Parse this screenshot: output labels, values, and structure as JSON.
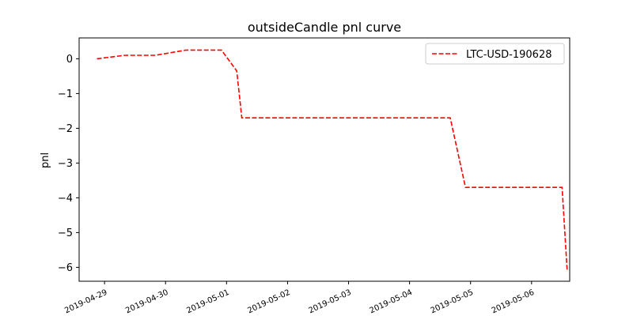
{
  "chart_data": {
    "type": "line",
    "title": "outsideCandle pnl curve",
    "xlabel": "",
    "ylabel": "pnl",
    "xlim": [
      "2019-04-28 14:00",
      "2019-05-06 15:00"
    ],
    "ylim": [
      -6.4,
      0.6
    ],
    "yticks": [
      0,
      -1,
      -2,
      -3,
      -4,
      -5,
      -6
    ],
    "ytick_labels": [
      "0",
      "−1",
      "−2",
      "−3",
      "−4",
      "−5",
      "−6"
    ],
    "xticks": [
      "2019-04-29",
      "2019-04-30",
      "2019-05-01",
      "2019-05-02",
      "2019-05-03",
      "2019-05-04",
      "2019-05-05",
      "2019-05-06"
    ],
    "grid": false,
    "legend": {
      "position": "top-right"
    },
    "series": [
      {
        "name": "LTC-USD-190628",
        "color": "#ff0000",
        "style": "dashed",
        "x": [
          "2019-04-28 21:00",
          "2019-04-29 08:00",
          "2019-04-29 20:00",
          "2019-04-30 08:00",
          "2019-04-30 22:00",
          "2019-05-01 04:00",
          "2019-05-01 06:00",
          "2019-05-04 16:00",
          "2019-05-04 22:00",
          "2019-05-06 12:00",
          "2019-05-06 14:00"
        ],
        "y": [
          0,
          0.1,
          0.1,
          0.25,
          0.25,
          -0.35,
          -1.7,
          -1.7,
          -3.7,
          -3.7,
          -6.1
        ]
      }
    ]
  }
}
